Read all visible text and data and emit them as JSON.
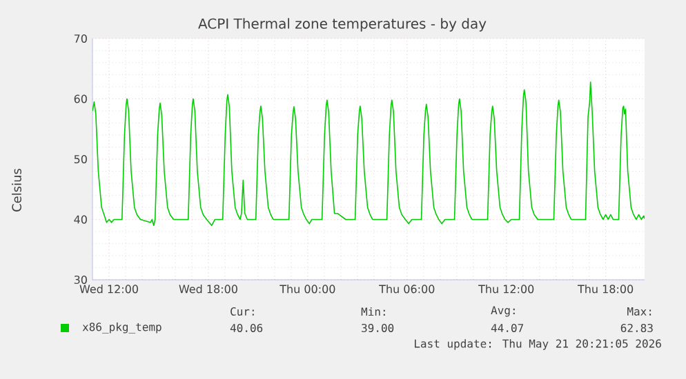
{
  "chart_data": {
    "type": "line",
    "title": "ACPI Thermal zone temperatures - by day",
    "ylabel": "Celsius",
    "xlim": [
      "2026-05-20T11:00",
      "2026-05-21T20:21"
    ],
    "ylim": [
      30,
      70
    ],
    "xticks": [
      {
        "value": "2026-05-20T12:00",
        "label": "Wed 12:00"
      },
      {
        "value": "2026-05-20T18:00",
        "label": "Wed 18:00"
      },
      {
        "value": "2026-05-21T00:00",
        "label": "Thu 00:00"
      },
      {
        "value": "2026-05-21T06:00",
        "label": "Thu 06:00"
      },
      {
        "value": "2026-05-21T12:00",
        "label": "Thu 12:00"
      },
      {
        "value": "2026-05-21T18:00",
        "label": "Thu 18:00"
      }
    ],
    "yticks": [
      30,
      40,
      50,
      60,
      70
    ],
    "grid": true,
    "legend": "bottom left",
    "annotations": [
      "Cur:",
      "Min:",
      "Avg:",
      "Max:",
      "40.06",
      "39.00",
      "44.07",
      "62.83",
      "Last update: Thu May 21 20:21:05 2026"
    ],
    "series": [
      {
        "name": "x86_pkg_temp",
        "color": "#00cc00",
        "x": [
          "2026-05-20T11:00",
          "2026-05-20T11:06",
          "2026-05-20T11:12",
          "2026-05-20T11:21",
          "2026-05-20T11:33",
          "2026-05-20T11:42",
          "2026-05-20T11:51",
          "2026-05-20T12:00",
          "2026-05-20T12:09",
          "2026-05-20T12:18",
          "2026-05-20T12:47",
          "2026-05-20T12:56",
          "2026-05-20T13:02",
          "2026-05-20T13:05",
          "2026-05-20T13:11",
          "2026-05-20T13:20",
          "2026-05-20T13:32",
          "2026-05-20T13:41",
          "2026-05-20T13:54",
          "2026-05-20T14:30",
          "2026-05-20T14:36",
          "2026-05-20T14:42",
          "2026-05-20T14:47",
          "2026-05-20T14:56",
          "2026-05-20T15:02",
          "2026-05-20T15:05",
          "2026-05-20T15:11",
          "2026-05-20T15:20",
          "2026-05-20T15:32",
          "2026-05-20T15:41",
          "2026-05-20T15:54",
          "2026-05-20T16:47",
          "2026-05-20T16:56",
          "2026-05-20T17:02",
          "2026-05-20T17:05",
          "2026-05-20T17:11",
          "2026-05-20T17:20",
          "2026-05-20T17:32",
          "2026-05-20T17:41",
          "2026-05-20T17:54",
          "2026-05-20T18:12",
          "2026-05-20T18:24",
          "2026-05-20T18:52",
          "2026-05-20T19:01",
          "2026-05-20T19:07",
          "2026-05-20T19:10",
          "2026-05-20T19:16",
          "2026-05-20T19:25",
          "2026-05-20T19:37",
          "2026-05-20T19:46",
          "2026-05-20T19:55",
          "2026-05-20T20:00",
          "2026-05-20T20:06",
          "2026-05-20T20:12",
          "2026-05-20T20:21",
          "2026-05-20T20:52",
          "2026-05-20T21:01",
          "2026-05-20T21:07",
          "2026-05-20T21:10",
          "2026-05-20T21:16",
          "2026-05-20T21:25",
          "2026-05-20T21:37",
          "2026-05-20T21:46",
          "2026-05-20T21:55",
          "2026-05-20T22:52",
          "2026-05-20T23:01",
          "2026-05-20T23:07",
          "2026-05-20T23:10",
          "2026-05-20T23:16",
          "2026-05-20T23:25",
          "2026-05-20T23:37",
          "2026-05-20T23:46",
          "2026-05-20T23:55",
          "2026-05-21T00:06",
          "2026-05-21T00:15",
          "2026-05-21T00:52",
          "2026-05-21T01:01",
          "2026-05-21T01:07",
          "2026-05-21T01:10",
          "2026-05-21T01:16",
          "2026-05-21T01:25",
          "2026-05-21T01:37",
          "2026-05-21T01:48",
          "2026-05-21T02:18",
          "2026-05-21T02:52",
          "2026-05-21T03:01",
          "2026-05-21T03:07",
          "2026-05-21T03:10",
          "2026-05-21T03:16",
          "2026-05-21T03:25",
          "2026-05-21T03:37",
          "2026-05-21T03:46",
          "2026-05-21T03:55",
          "2026-05-21T04:47",
          "2026-05-21T04:56",
          "2026-05-21T05:02",
          "2026-05-21T05:05",
          "2026-05-21T05:11",
          "2026-05-21T05:20",
          "2026-05-21T05:32",
          "2026-05-21T05:41",
          "2026-05-21T05:54",
          "2026-05-21T06:06",
          "2026-05-21T06:18",
          "2026-05-21T06:52",
          "2026-05-21T07:01",
          "2026-05-21T07:07",
          "2026-05-21T07:10",
          "2026-05-21T07:16",
          "2026-05-21T07:25",
          "2026-05-21T07:37",
          "2026-05-21T07:46",
          "2026-05-21T07:55",
          "2026-05-21T08:06",
          "2026-05-21T08:18",
          "2026-05-21T08:52",
          "2026-05-21T09:01",
          "2026-05-21T09:07",
          "2026-05-21T09:10",
          "2026-05-21T09:16",
          "2026-05-21T09:25",
          "2026-05-21T09:37",
          "2026-05-21T09:46",
          "2026-05-21T09:55",
          "2026-05-21T10:52",
          "2026-05-21T11:01",
          "2026-05-21T11:07",
          "2026-05-21T11:10",
          "2026-05-21T11:16",
          "2026-05-21T11:25",
          "2026-05-21T11:37",
          "2026-05-21T11:46",
          "2026-05-21T11:55",
          "2026-05-21T12:06",
          "2026-05-21T12:18",
          "2026-05-21T12:47",
          "2026-05-21T12:56",
          "2026-05-21T13:02",
          "2026-05-21T13:05",
          "2026-05-21T13:11",
          "2026-05-21T13:20",
          "2026-05-21T13:32",
          "2026-05-21T13:41",
          "2026-05-21T13:54",
          "2026-05-21T14:52",
          "2026-05-21T15:01",
          "2026-05-21T15:07",
          "2026-05-21T15:10",
          "2026-05-21T15:16",
          "2026-05-21T15:25",
          "2026-05-21T15:37",
          "2026-05-21T15:46",
          "2026-05-21T15:55",
          "2026-05-21T16:47",
          "2026-05-21T16:56",
          "2026-05-21T17:02",
          "2026-05-21T17:05",
          "2026-05-21T17:11",
          "2026-05-21T17:20",
          "2026-05-21T17:32",
          "2026-05-21T17:41",
          "2026-05-21T17:51",
          "2026-05-21T18:00",
          "2026-05-21T18:09",
          "2026-05-21T18:18",
          "2026-05-21T18:27",
          "2026-05-21T18:47",
          "2026-05-21T18:56",
          "2026-05-21T19:02",
          "2026-05-21T19:05",
          "2026-05-21T19:08",
          "2026-05-21T19:12",
          "2026-05-21T19:20",
          "2026-05-21T19:32",
          "2026-05-21T19:41",
          "2026-05-21T19:51",
          "2026-05-21T20:00",
          "2026-05-21T20:09",
          "2026-05-21T20:18",
          "2026-05-21T20:21"
        ],
        "values": [
          58,
          59.5,
          57.5,
          48,
          42,
          40.8,
          39.5,
          40,
          39.5,
          40,
          40,
          54,
          59,
          60,
          58,
          48,
          42,
          40.8,
          40,
          39.5,
          40,
          39,
          40,
          54,
          58.3,
          59.3,
          57.3,
          48,
          42,
          40.8,
          40,
          40,
          54,
          59,
          60,
          58,
          48,
          42,
          40.8,
          40,
          39,
          40,
          40,
          54,
          59.7,
          60.7,
          58.7,
          48,
          42,
          40.8,
          40,
          41,
          46.5,
          41,
          40,
          40,
          54,
          57.8,
          58.8,
          56.8,
          48,
          42,
          40.8,
          40,
          40,
          54,
          57.7,
          58.7,
          56.7,
          48,
          42,
          40.8,
          40,
          39.3,
          40,
          40,
          54,
          58.8,
          59.8,
          57.8,
          48,
          41,
          41,
          40,
          40,
          54,
          57.8,
          58.8,
          56.8,
          48,
          42,
          40.8,
          40,
          40,
          54,
          58.8,
          59.8,
          57.8,
          48,
          42,
          40.8,
          40,
          39.3,
          40,
          40,
          54,
          58.1,
          59.1,
          57.1,
          48,
          42,
          40.8,
          40,
          39.3,
          40,
          40,
          54,
          59,
          60,
          58,
          48,
          42,
          40.8,
          40,
          40,
          54,
          57.8,
          58.8,
          56.8,
          48,
          42,
          40.8,
          40,
          39.5,
          40,
          40,
          55,
          60.5,
          61.5,
          59.5,
          48,
          42,
          40.8,
          40,
          40,
          54,
          58.8,
          59.8,
          57.8,
          48,
          42,
          40.8,
          40,
          40,
          57,
          59.5,
          62.8,
          58,
          48,
          42,
          40.8,
          40,
          40.8,
          40,
          40.8,
          40,
          40,
          54,
          58.5,
          58.8,
          57.5,
          58.3,
          48,
          42,
          40.8,
          40,
          40.8,
          40,
          40.6,
          40.1
        ]
      }
    ]
  }
}
